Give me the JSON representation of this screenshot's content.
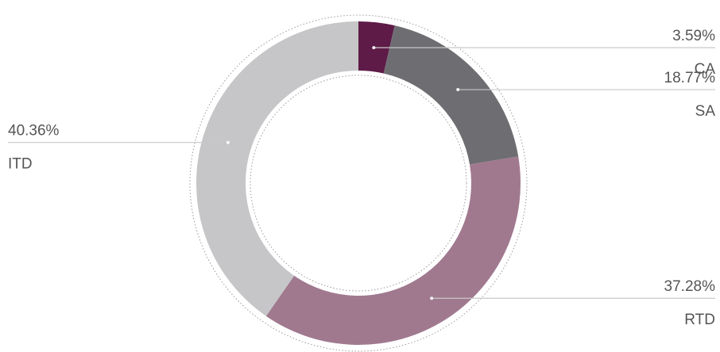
{
  "chart_data": {
    "type": "pie",
    "variant": "donut",
    "title": "",
    "start_angle_deg": 0,
    "direction": "clockwise",
    "slices": [
      {
        "label": "CA",
        "value": 3.59,
        "value_label": "3.59%",
        "color": "#5e1b47",
        "label_side": "right"
      },
      {
        "label": "SA",
        "value": 18.77,
        "value_label": "18.77%",
        "color": "#6e6e72",
        "label_side": "right"
      },
      {
        "label": "RTD",
        "value": 37.28,
        "value_label": "37.28%",
        "color": "#a0798f",
        "label_side": "right"
      },
      {
        "label": "ITD",
        "value": 40.36,
        "value_label": "40.36%",
        "color": "#c6c6c8",
        "label_side": "left"
      }
    ],
    "legend": "none"
  }
}
